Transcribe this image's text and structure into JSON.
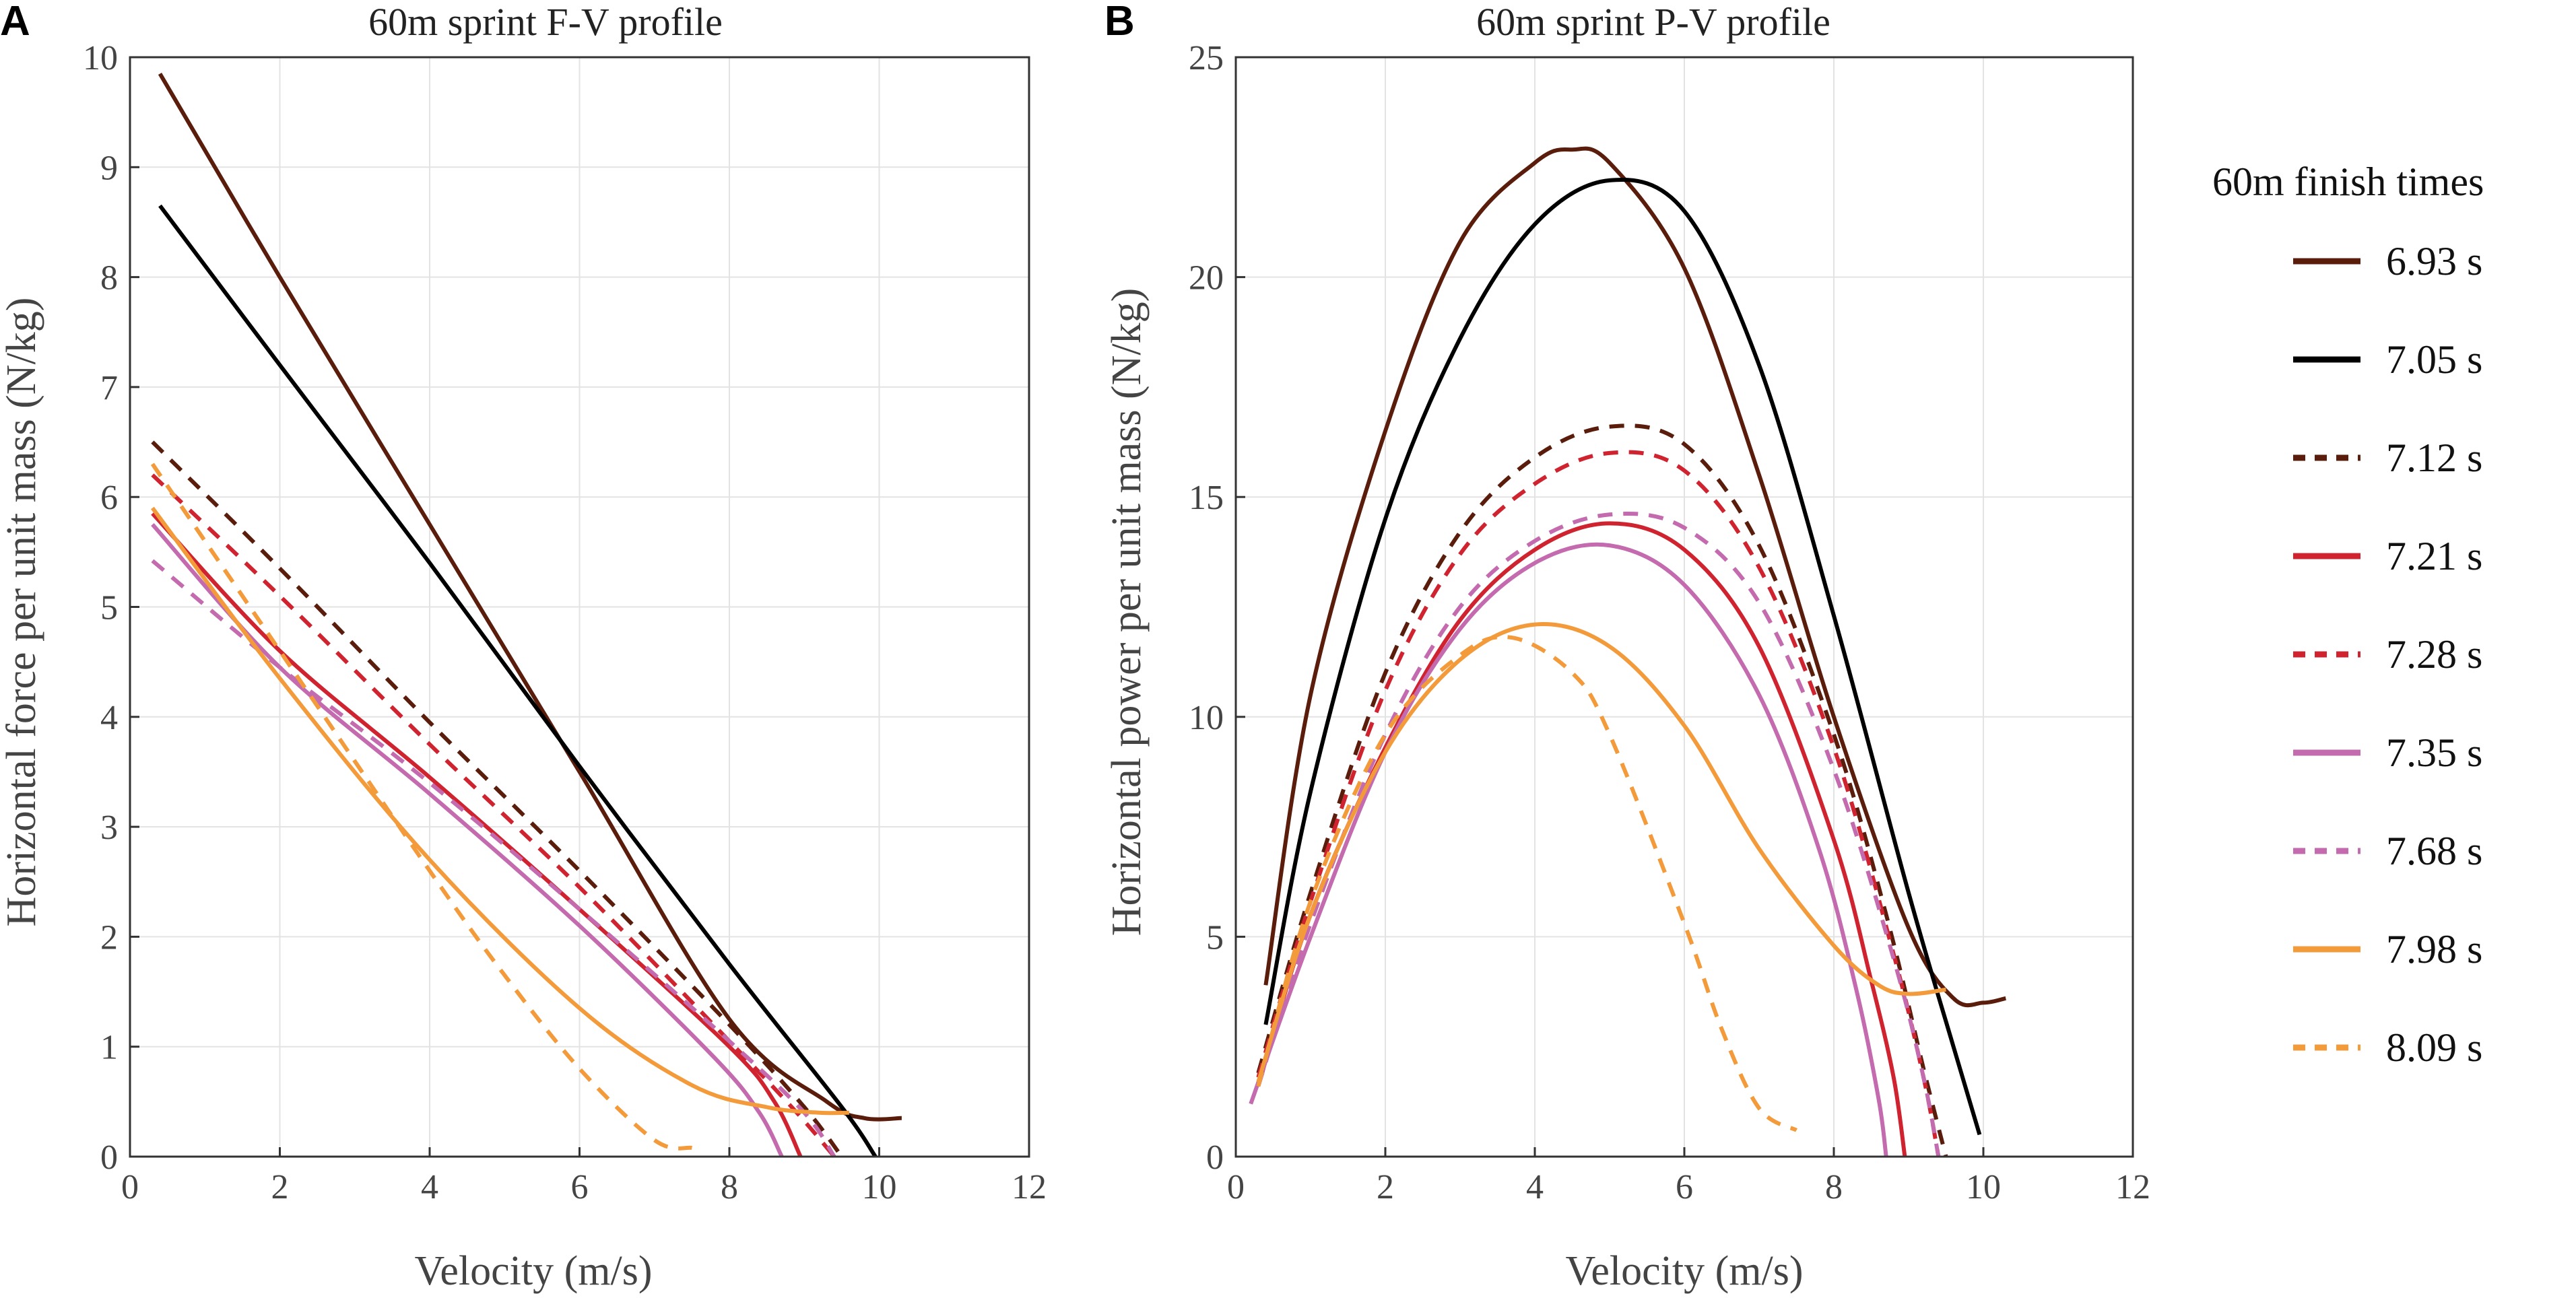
{
  "panel_a_letter": "A",
  "panel_b_letter": "B",
  "legend": {
    "title": "60m finish times",
    "entries": [
      {
        "label": "6.93 s",
        "color": "#5a1d0c",
        "dashed": false
      },
      {
        "label": "7.05 s",
        "color": "#000000",
        "dashed": false
      },
      {
        "label": "7.12 s",
        "color": "#5a1d0c",
        "dashed": true
      },
      {
        "label": "7.21 s",
        "color": "#cf2330",
        "dashed": false
      },
      {
        "label": "7.28 s",
        "color": "#cf2330",
        "dashed": true
      },
      {
        "label": "7.35 s",
        "color": "#c46aae",
        "dashed": false
      },
      {
        "label": "7.68 s",
        "color": "#c46aae",
        "dashed": true
      },
      {
        "label": "7.98 s",
        "color": "#f39a3b",
        "dashed": false
      },
      {
        "label": "8.09 s",
        "color": "#f39a3b",
        "dashed": true
      }
    ]
  },
  "chart_data": [
    {
      "type": "line",
      "panel": "A",
      "title": "60m sprint F-V profile",
      "xlabel": "Velocity (m/s)",
      "ylabel": "Horizontal force per unit mass (N/kg)",
      "xlim": [
        0,
        12
      ],
      "ylim": [
        0,
        10
      ],
      "xticks": [
        0,
        2,
        4,
        6,
        8,
        10,
        12
      ],
      "yticks": [
        0,
        1,
        2,
        3,
        4,
        5,
        6,
        7,
        8,
        9,
        10
      ],
      "grid": true,
      "series": [
        {
          "name": "6.93 s",
          "x": [
            0.4,
            2,
            4,
            6,
            8,
            9.3,
            9.8,
            10.3
          ],
          "y": [
            9.85,
            8.0,
            5.75,
            3.5,
            1.25,
            0.5,
            0.35,
            0.35
          ]
        },
        {
          "name": "7.05 s",
          "x": [
            0.4,
            2,
            4,
            6,
            8,
            9.5,
            9.95
          ],
          "y": [
            8.65,
            7.2,
            5.4,
            3.55,
            1.75,
            0.45,
            0.0
          ]
        },
        {
          "name": "7.12 s",
          "x": [
            0.3,
            2,
            4,
            6,
            8,
            9.0,
            9.5
          ],
          "y": [
            6.5,
            5.35,
            3.95,
            2.6,
            1.2,
            0.45,
            0.0
          ]
        },
        {
          "name": "7.21 s",
          "x": [
            0.3,
            2,
            4,
            6,
            8,
            8.6,
            8.95
          ],
          "y": [
            5.85,
            4.6,
            3.45,
            2.25,
            1.0,
            0.5,
            0.0
          ]
        },
        {
          "name": "7.28 s",
          "x": [
            0.3,
            2,
            4,
            6,
            8,
            8.9,
            9.4
          ],
          "y": [
            6.2,
            5.1,
            3.75,
            2.45,
            1.05,
            0.4,
            0.0
          ]
        },
        {
          "name": "7.35 s",
          "x": [
            0.3,
            2,
            4,
            6,
            7.8,
            8.4,
            8.7
          ],
          "y": [
            5.75,
            4.45,
            3.3,
            2.1,
            0.9,
            0.4,
            0.0
          ]
        },
        {
          "name": "7.68 s",
          "x": [
            0.3,
            2,
            4,
            6,
            8,
            9.0,
            9.4
          ],
          "y": [
            5.42,
            4.45,
            3.4,
            2.25,
            1.05,
            0.4,
            0.0
          ]
        },
        {
          "name": "7.98 s",
          "x": [
            0.3,
            2,
            4,
            6,
            7.5,
            8.5,
            9.2,
            9.6
          ],
          "y": [
            5.9,
            4.35,
            2.7,
            1.35,
            0.65,
            0.45,
            0.4,
            0.4
          ]
        },
        {
          "name": "8.09 s",
          "x": [
            0.3,
            2,
            4,
            5,
            6,
            7,
            7.5
          ],
          "y": [
            6.3,
            4.6,
            2.6,
            1.65,
            0.8,
            0.15,
            0.08
          ]
        }
      ]
    },
    {
      "type": "line",
      "panel": "B",
      "title": "60m sprint P-V profile",
      "xlabel": "Velocity (m/s)",
      "ylabel": "Horizontal power per unit mass (N/kg)",
      "xlim": [
        0,
        12
      ],
      "ylim": [
        0,
        25
      ],
      "xticks": [
        0,
        2,
        4,
        6,
        8,
        10,
        12
      ],
      "yticks": [
        0,
        5,
        10,
        15,
        20,
        25
      ],
      "grid": true,
      "series": [
        {
          "name": "6.93 s",
          "x": [
            0.4,
            1,
            2,
            3,
            4,
            4.5,
            5,
            6,
            7,
            8,
            9,
            9.6,
            10,
            10.3
          ],
          "y": [
            3.9,
            10.5,
            16.5,
            20.8,
            22.6,
            22.9,
            22.6,
            20.2,
            15.5,
            10.0,
            5.2,
            3.6,
            3.5,
            3.6
          ]
        },
        {
          "name": "7.05 s",
          "x": [
            0.4,
            1,
            2,
            3,
            4,
            5,
            6,
            7,
            8,
            9,
            9.6,
            9.95
          ],
          "y": [
            3.0,
            8.3,
            14.5,
            18.6,
            21.2,
            22.2,
            21.5,
            18.0,
            12.3,
            6.0,
            2.5,
            0.5
          ]
        },
        {
          "name": "7.12 s",
          "x": [
            0.3,
            1,
            2,
            3,
            4,
            5,
            6,
            7,
            8,
            8.7,
            9.2,
            9.5
          ],
          "y": [
            1.9,
            6.0,
            11.0,
            14.2,
            15.9,
            16.6,
            16.2,
            13.9,
            9.6,
            5.5,
            2.0,
            0.0
          ]
        },
        {
          "name": "7.21 s",
          "x": [
            0.3,
            1,
            2,
            3,
            4,
            5,
            6,
            7,
            8,
            8.5,
            8.8,
            8.95
          ],
          "y": [
            1.6,
            5.5,
            9.3,
            12.2,
            13.8,
            14.4,
            13.8,
            11.6,
            7.2,
            4.0,
            1.8,
            0.0
          ]
        },
        {
          "name": "7.28 s",
          "x": [
            0.3,
            1,
            2,
            3,
            4,
            5,
            6,
            7,
            8,
            8.8,
            9.2,
            9.4
          ],
          "y": [
            1.8,
            5.8,
            10.6,
            13.7,
            15.3,
            16.0,
            15.6,
            13.4,
            9.3,
            4.6,
            1.8,
            0.0
          ]
        },
        {
          "name": "7.35 s",
          "x": [
            0.2,
            1,
            2,
            3,
            4,
            5,
            6,
            7,
            7.8,
            8.3,
            8.6,
            8.7
          ],
          "y": [
            1.2,
            5.0,
            9.2,
            12.0,
            13.5,
            13.9,
            13.0,
            10.5,
            7.0,
            3.8,
            1.3,
            0.0
          ]
        },
        {
          "name": "7.68 s",
          "x": [
            0.3,
            1,
            2,
            3,
            4,
            5,
            6,
            7,
            8,
            8.8,
            9.2,
            9.4
          ],
          "y": [
            1.6,
            5.3,
            9.6,
            12.5,
            14.0,
            14.6,
            14.3,
            12.6,
            8.8,
            4.5,
            1.8,
            0.0
          ]
        },
        {
          "name": "7.98 s",
          "x": [
            0.3,
            1,
            2,
            3,
            4,
            5,
            6,
            7,
            8,
            8.6,
            9.0,
            9.5
          ],
          "y": [
            1.7,
            5.5,
            9.2,
            11.3,
            12.1,
            11.6,
            9.8,
            7.0,
            4.8,
            3.9,
            3.7,
            3.8
          ]
        },
        {
          "name": "8.09 s",
          "x": [
            0.3,
            1,
            2,
            3,
            3.7,
            4.5,
            5,
            6,
            6.5,
            7,
            7.5
          ],
          "y": [
            1.6,
            5.8,
            9.6,
            11.4,
            11.8,
            11.0,
            9.6,
            5.3,
            2.9,
            1.1,
            0.6
          ]
        }
      ]
    }
  ]
}
